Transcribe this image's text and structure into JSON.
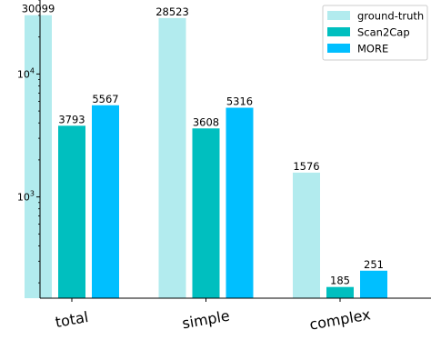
{
  "chart_data": {
    "type": "bar",
    "categories": [
      "total",
      "simple",
      "complex"
    ],
    "series": [
      {
        "name": "ground-truth",
        "color": "#b2ebee",
        "values": [
          30099,
          28523,
          1576
        ]
      },
      {
        "name": "Scan2Cap",
        "color": "#00bfbf",
        "values": [
          3793,
          3608,
          185
        ]
      },
      {
        "name": "MORE",
        "color": "#00bfff",
        "values": [
          5567,
          5316,
          251
        ]
      }
    ],
    "yscale": "log",
    "ylim": [
      150,
      40000
    ],
    "yticks": [
      {
        "value": 1000,
        "base": "10",
        "exp": "3"
      },
      {
        "value": 10000,
        "base": "10",
        "exp": "4"
      }
    ],
    "legend_position": "top-right",
    "grid": false
  }
}
